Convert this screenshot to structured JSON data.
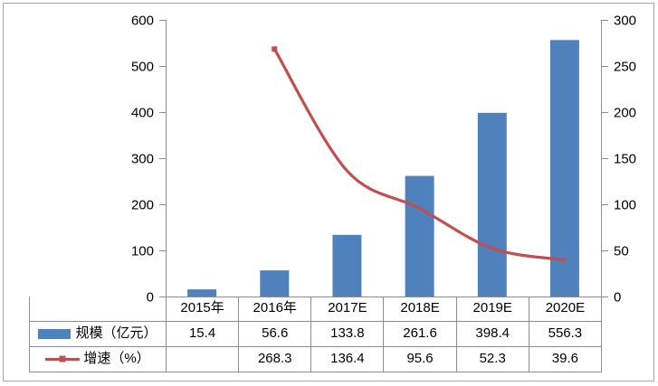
{
  "chart_data": {
    "type": "combo-bar-line",
    "title": "",
    "categories": [
      "2015年",
      "2016年",
      "2017E",
      "2018E",
      "2019E",
      "2020E"
    ],
    "series": [
      {
        "name": "规模（亿元）",
        "type": "bar",
        "axis": "left",
        "color": "#4F81BD",
        "values": [
          15.4,
          56.6,
          133.8,
          261.6,
          398.4,
          556.3
        ]
      },
      {
        "name": "增速（%）",
        "type": "line",
        "axis": "right",
        "color": "#C0504D",
        "smooth": true,
        "marker": "square",
        "values": [
          null,
          268.3,
          136.4,
          95.6,
          52.3,
          39.6
        ]
      }
    ],
    "left_axis": {
      "min": 0,
      "max": 600,
      "step": 100,
      "tick_labels": [
        "0",
        "100",
        "200",
        "300",
        "400",
        "500",
        "600"
      ]
    },
    "right_axis": {
      "min": 0,
      "max": 300,
      "step": 50,
      "tick_labels": [
        "0",
        "50",
        "100",
        "150",
        "200",
        "250",
        "300"
      ]
    },
    "grid": false,
    "legend_position": "data-table-left",
    "appearance": {
      "axis_color": "#8C8C8C",
      "table_border_color": "#8C8C8C",
      "text_color": "#000000",
      "frame_color": "#A6A6A6"
    }
  }
}
